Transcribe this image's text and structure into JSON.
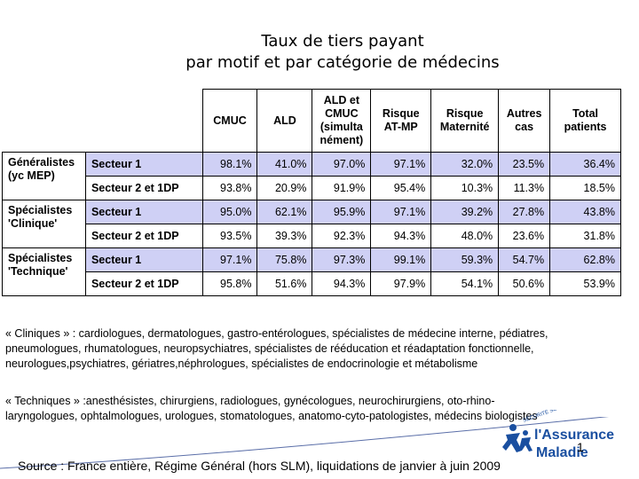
{
  "title": {
    "line1": "Taux de tiers payant",
    "line2": "par motif et par catégorie de médecins"
  },
  "table": {
    "headers": {
      "cmuc": "CMUC",
      "ald": "ALD",
      "ald_cmuc_1": "ALD et",
      "ald_cmuc_2": "CMUC",
      "ald_cmuc_3": "(simulta",
      "ald_cmuc_4": "nément)",
      "atmp_1": "Risque",
      "atmp_2": "AT-MP",
      "mat_1": "Risque",
      "mat_2": "Maternité",
      "autres_1": "Autres",
      "autres_2": "cas",
      "total_1": "Total",
      "total_2": "patients"
    },
    "groups": [
      {
        "cat1": "Généralistes",
        "cat2": "(yc MEP)",
        "rows": [
          {
            "sector": "Secteur 1",
            "values": [
              "98.1%",
              "41.0%",
              "97.0%",
              "97.1%",
              "32.0%",
              "23.5%",
              "36.4%"
            ]
          },
          {
            "sector": "Secteur 2 et 1DP",
            "values": [
              "93.8%",
              "20.9%",
              "91.9%",
              "95.4%",
              "10.3%",
              "11.3%",
              "18.5%"
            ]
          }
        ]
      },
      {
        "cat1": "Spécialistes",
        "cat2": "'Clinique'",
        "rows": [
          {
            "sector": "Secteur 1",
            "values": [
              "95.0%",
              "62.1%",
              "95.9%",
              "97.1%",
              "39.2%",
              "27.8%",
              "43.8%"
            ]
          },
          {
            "sector": "Secteur 2 et 1DP",
            "values": [
              "93.5%",
              "39.3%",
              "92.3%",
              "94.3%",
              "48.0%",
              "23.6%",
              "31.8%"
            ]
          }
        ]
      },
      {
        "cat1": "Spécialistes",
        "cat2": "'Technique'",
        "rows": [
          {
            "sector": "Secteur 1",
            "values": [
              "97.1%",
              "75.8%",
              "97.3%",
              "99.1%",
              "59.3%",
              "54.7%",
              "62.8%"
            ]
          },
          {
            "sector": "Secteur 2 et 1DP",
            "values": [
              "95.8%",
              "51.6%",
              "94.3%",
              "97.9%",
              "54.1%",
              "50.6%",
              "53.9%"
            ]
          }
        ]
      }
    ]
  },
  "notes": {
    "cliniques": "« Cliniques » : cardiologues, dermatologues, gastro-entérologues, spécialistes de médecine interne, pédiatres, pneumologues, rhumatologues, neuropsychiatres, spécialistes de rééducation et réadaptation fonctionnelle, neurologues,psychiatres, gériatres,néphrologues, spécialistes de endocrinologie et métabolisme",
    "techniques": "« Techniques » :anesthésistes, chirurgiens, radiologues, gynécologues, neurochirurgiens, oto-rhino-laryngologues, ophtalmologues, urologues, stomatologues, anatomo-cyto-patologistes, médecins biologistes"
  },
  "source": "Source : France entière, Régime Général (hors SLM), liquidations de janvier à juin 2009",
  "page_number": "1",
  "logo": {
    "line1": "l'Assurance",
    "line2": "Maladie",
    "brand_color": "#1a4fa0"
  },
  "colors": {
    "shade": "#cfd0f5"
  }
}
